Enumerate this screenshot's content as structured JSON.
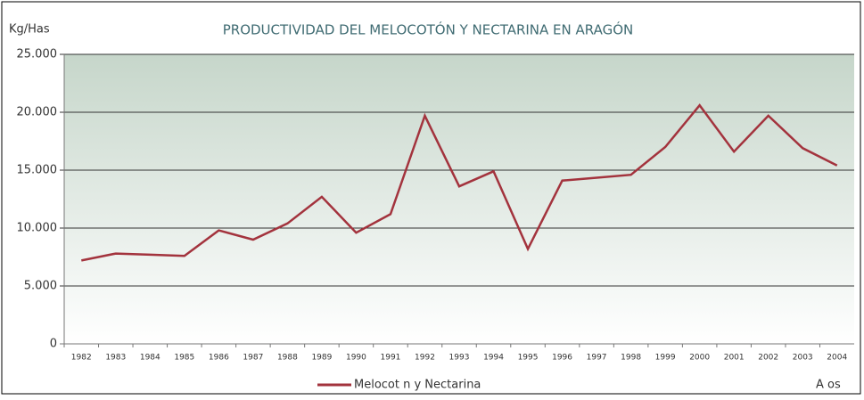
{
  "chart_data": {
    "type": "line",
    "title": "PRODUCTIVIDAD DEL MELOCOTÓN Y NECTARINA EN ARAGÓN",
    "y_label": "Kg/Has",
    "x_label": "A os",
    "categories": [
      "1982",
      "1983",
      "1984",
      "1985",
      "1986",
      "1987",
      "1988",
      "1989",
      "1990",
      "1991",
      "1992",
      "1993",
      "1994",
      "1995",
      "1996",
      "1997",
      "1998",
      "1999",
      "2000",
      "2001",
      "2002",
      "2003",
      "2004"
    ],
    "series": [
      {
        "name": "Melocot n y Nectarina",
        "color": "#a3333d",
        "values": [
          7200,
          7800,
          7700,
          7600,
          9800,
          9000,
          10400,
          12700,
          9600,
          11200,
          19700,
          13600,
          14900,
          8200,
          14100,
          14350,
          14600,
          17000,
          20600,
          16600,
          19700,
          16900,
          15400
        ]
      }
    ],
    "ylim": [
      0,
      25000
    ],
    "yticks": [
      {
        "value": 0,
        "label": "0"
      },
      {
        "value": 5000,
        "label": "5.000"
      },
      {
        "value": 10000,
        "label": "10.000"
      },
      {
        "value": 15000,
        "label": "15.000"
      },
      {
        "value": 20000,
        "label": "20.000"
      },
      {
        "value": 25000,
        "label": "25.000"
      }
    ],
    "grid": true,
    "legend": "bottom"
  }
}
